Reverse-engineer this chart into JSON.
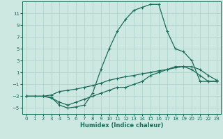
{
  "xlabel": "Humidex (Indice chaleur)",
  "background_color": "#cce8e0",
  "grid_color": "#b0d4cc",
  "line_color": "#1a6b5a",
  "ylim": [
    -6,
    13
  ],
  "xlim": [
    -0.5,
    23.5
  ],
  "yticks": [
    -5,
    -3,
    -1,
    1,
    3,
    5,
    7,
    9,
    11
  ],
  "xticks": [
    0,
    1,
    2,
    3,
    4,
    5,
    6,
    7,
    8,
    9,
    10,
    11,
    12,
    13,
    14,
    15,
    16,
    17,
    18,
    19,
    20,
    21,
    22,
    23
  ],
  "line1_x": [
    0,
    1,
    2,
    3,
    4,
    5,
    6,
    7,
    8,
    9,
    10,
    11,
    12,
    13,
    14,
    15,
    16,
    17,
    18,
    19,
    20,
    21,
    22,
    23
  ],
  "line1_y": [
    -3,
    -3,
    -3,
    -3.2,
    -4.5,
    -5,
    -4.8,
    -4.5,
    -2.5,
    1.5,
    5,
    8,
    10,
    11.5,
    12,
    12.5,
    12.5,
    8,
    5,
    4.5,
    3,
    -0.5,
    -0.5,
    -0.5
  ],
  "line2_x": [
    0,
    2,
    3,
    4,
    5,
    6,
    7,
    8,
    9,
    10,
    11,
    12,
    13,
    14,
    15,
    16,
    17,
    18,
    19,
    20,
    21,
    22,
    23
  ],
  "line2_y": [
    -3,
    -3,
    -3.3,
    -4,
    -4.5,
    -4,
    -3.5,
    -3,
    -2.5,
    -2,
    -1.5,
    -1.5,
    -1,
    -0.5,
    0.5,
    1,
    1.5,
    2,
    2,
    1.5,
    0.5,
    -0.5,
    -0.5
  ],
  "line3_x": [
    0,
    2,
    3,
    4,
    5,
    6,
    7,
    8,
    9,
    10,
    11,
    12,
    13,
    14,
    15,
    16,
    17,
    18,
    19,
    20,
    21,
    22,
    23
  ],
  "line3_y": [
    -3,
    -3,
    -2.8,
    -2.2,
    -2,
    -1.8,
    -1.5,
    -1.2,
    -0.8,
    -0.3,
    0,
    0.3,
    0.5,
    0.8,
    1,
    1.3,
    1.5,
    1.8,
    2,
    2,
    1.5,
    0.5,
    -0.3
  ],
  "marker": "+"
}
